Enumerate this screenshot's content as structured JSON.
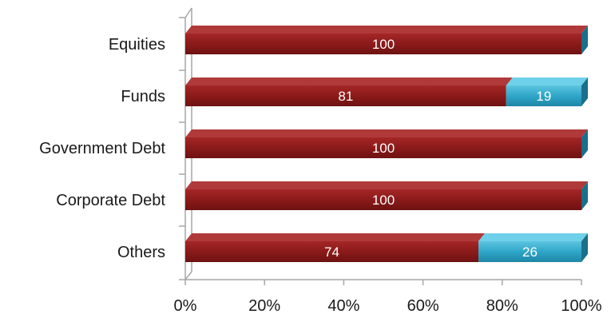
{
  "chart_data": {
    "type": "bar",
    "orientation": "horizontal",
    "stacked": "percent",
    "title": "",
    "xlabel": "",
    "ylabel": "",
    "categories": [
      "Equities",
      "Funds",
      "Government Debt",
      "Corporate Debt",
      "Others"
    ],
    "series": [
      {
        "values": [
          100,
          81,
          100,
          100,
          74
        ],
        "color": "#8b1a1a"
      },
      {
        "values": [
          0,
          19,
          0,
          0,
          26
        ],
        "color": "#2fa6c8"
      }
    ],
    "xlim": [
      0,
      100
    ],
    "x_ticks": [
      "0%",
      "20%",
      "40%",
      "60%",
      "80%",
      "100%"
    ],
    "grid": false,
    "legend": "none",
    "style": "3d"
  }
}
